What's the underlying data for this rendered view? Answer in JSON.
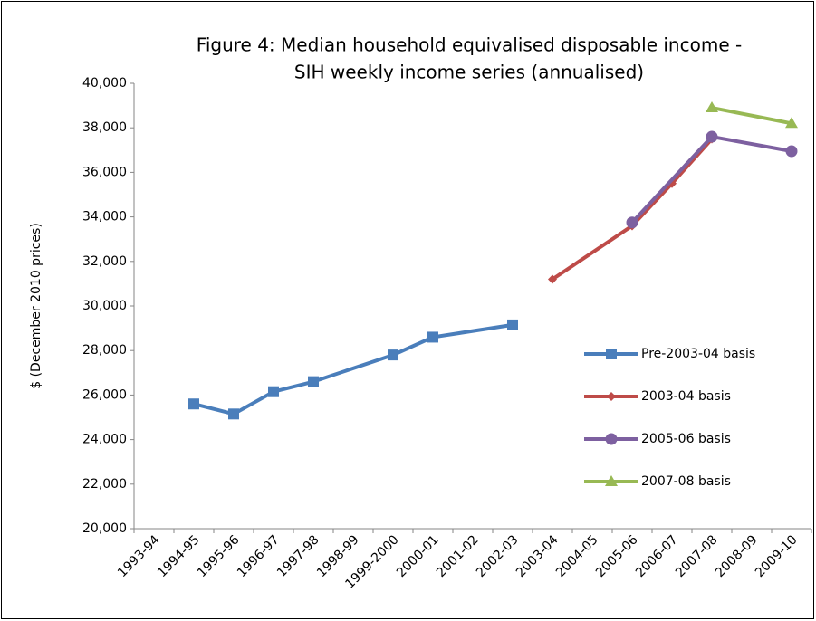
{
  "chart_data": {
    "type": "line",
    "title": [
      "Figure 4: Median household equivalised disposable income -",
      "SIH weekly income series (annualised)"
    ],
    "y_label": "$ (December 2010 prices)",
    "categories": [
      "1993-94",
      "1994-95",
      "1995-96",
      "1996-97",
      "1997-98",
      "1998-99",
      "1999-2000",
      "2000-01",
      "2001-02",
      "2002-03",
      "2003-04",
      "2004-05",
      "2005-06",
      "2006-07",
      "2007-08",
      "2008-09",
      "2009-10"
    ],
    "series": [
      {
        "name": "Pre-2003-04 basis",
        "color": "#4a7ebb",
        "marker": "square",
        "values": [
          null,
          25600,
          25150,
          26150,
          26600,
          null,
          27800,
          28600,
          null,
          29150,
          null,
          null,
          null,
          null,
          null,
          null,
          null
        ]
      },
      {
        "name": "2003-04 basis",
        "color": "#be4b48",
        "marker": "diamond",
        "values": [
          null,
          null,
          null,
          null,
          null,
          null,
          null,
          null,
          null,
          null,
          31200,
          null,
          33600,
          35500,
          37500,
          null,
          null
        ]
      },
      {
        "name": "2005-06 basis",
        "color": "#7d60a0",
        "marker": "circle",
        "values": [
          null,
          null,
          null,
          null,
          null,
          null,
          null,
          null,
          null,
          null,
          null,
          null,
          33750,
          null,
          37600,
          null,
          36950
        ]
      },
      {
        "name": "2007-08 basis",
        "color": "#98b954",
        "marker": "triangle",
        "values": [
          null,
          null,
          null,
          null,
          null,
          null,
          null,
          null,
          null,
          null,
          null,
          null,
          null,
          null,
          38900,
          null,
          38200
        ]
      }
    ],
    "span_gaps": true,
    "ylim": [
      20000,
      40000
    ],
    "yticks": [
      {
        "value": 20000,
        "label": "20,000"
      },
      {
        "value": 22000,
        "label": "22,000"
      },
      {
        "value": 24000,
        "label": "24,000"
      },
      {
        "value": 26000,
        "label": "26,000"
      },
      {
        "value": 28000,
        "label": "28,000"
      },
      {
        "value": 30000,
        "label": "30,000"
      },
      {
        "value": 32000,
        "label": "32,000"
      },
      {
        "value": 34000,
        "label": "34,000"
      },
      {
        "value": 36000,
        "label": "36,000"
      },
      {
        "value": 38000,
        "label": "38,000"
      },
      {
        "value": 40000,
        "label": "40,000"
      }
    ],
    "grid": false,
    "legend": "right"
  }
}
